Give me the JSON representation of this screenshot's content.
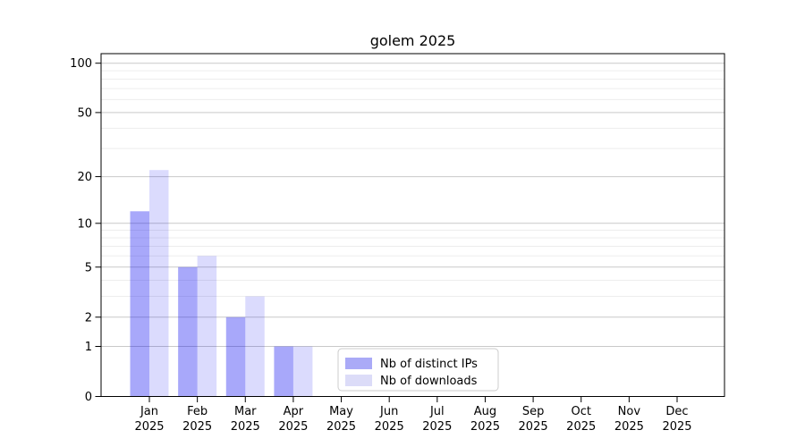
{
  "chart_data": {
    "type": "bar",
    "title": "golem 2025",
    "categories": [
      "Jan 2025",
      "Feb 2025",
      "Mar 2025",
      "Apr 2025",
      "May 2025",
      "Jun 2025",
      "Jul 2025",
      "Aug 2025",
      "Sep 2025",
      "Oct 2025",
      "Nov 2025",
      "Dec 2025"
    ],
    "category_line1": [
      "Jan",
      "Feb",
      "Mar",
      "Apr",
      "May",
      "Jun",
      "Jul",
      "Aug",
      "Sep",
      "Oct",
      "Nov",
      "Dec"
    ],
    "category_line2": [
      "2025",
      "2025",
      "2025",
      "2025",
      "2025",
      "2025",
      "2025",
      "2025",
      "2025",
      "2025",
      "2025",
      "2025"
    ],
    "series": [
      {
        "name": "Nb of distinct IPs",
        "color": "#aaaaf7",
        "fill": "rgba(0,0,240,0.34)",
        "values": [
          12,
          5,
          2,
          1,
          0,
          0,
          0,
          0,
          0,
          0,
          0,
          0
        ]
      },
      {
        "name": "Nb of downloads",
        "color": "#dcdcf8",
        "fill": "rgba(0,0,240,0.14)",
        "values": [
          22,
          6,
          3,
          1,
          0,
          0,
          0,
          0,
          0,
          0,
          0,
          0
        ]
      }
    ],
    "xlabel": "",
    "ylabel": "",
    "yscale": "log10(1+y)",
    "yticks": [
      0,
      1,
      2,
      5,
      10,
      20,
      50,
      100
    ],
    "minor_ytick_values": [
      3,
      4,
      6,
      7,
      8,
      9,
      30,
      40,
      60,
      70,
      80,
      90
    ],
    "ylim": [
      0,
      114
    ],
    "grid": true,
    "legend_position": "lower-center"
  },
  "legend": {
    "items": [
      {
        "label": "Nb of distinct IPs",
        "color": "#aaaaf7"
      },
      {
        "label": "Nb of downloads",
        "color": "#dcdcf8"
      }
    ]
  },
  "colors": {
    "background": "#ffffff",
    "axis": "#000000",
    "major_grid": "#c9c9c9",
    "minor_grid": "#ededed",
    "text": "#000000",
    "legend_border": "#cccccc",
    "legend_bg": "#ffffff"
  }
}
